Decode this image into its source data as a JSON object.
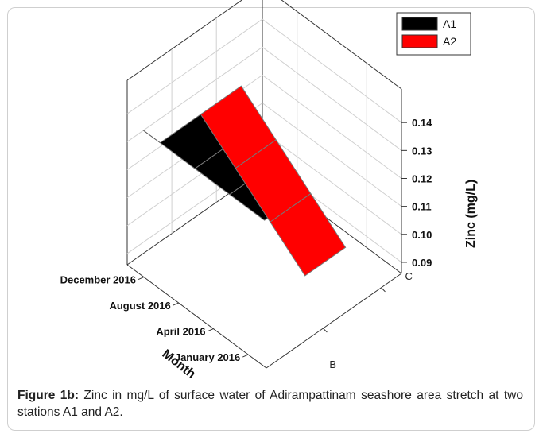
{
  "chart_data": {
    "type": "3d-surface",
    "title": "",
    "xlabel": "Month",
    "ylabel": "",
    "zlabel": "Zinc (mg/L)",
    "x_categories": [
      "December 2016",
      "August 2016",
      "April 2016",
      "January 2016"
    ],
    "y_categories": [
      "B",
      "C"
    ],
    "zlim": [
      0.09,
      0.14
    ],
    "z_ticks": [
      "0.09",
      "0.10",
      "0.11",
      "0.12",
      "0.13",
      "0.14"
    ],
    "series": [
      {
        "name": "A1",
        "color": "#000000",
        "values": [
          0.13,
          0.13,
          0.13,
          0.13
        ]
      },
      {
        "name": "A2",
        "color": "#ff0000",
        "values": [
          0.13,
          0.12,
          0.11,
          0.1
        ]
      }
    ],
    "legend_position": "top-right",
    "grid": true
  },
  "caption": {
    "label": "Figure 1b:",
    "text": " Zinc in mg/L of surface water of Adirampattinam seashore area stretch at two stations A1 and A2."
  }
}
